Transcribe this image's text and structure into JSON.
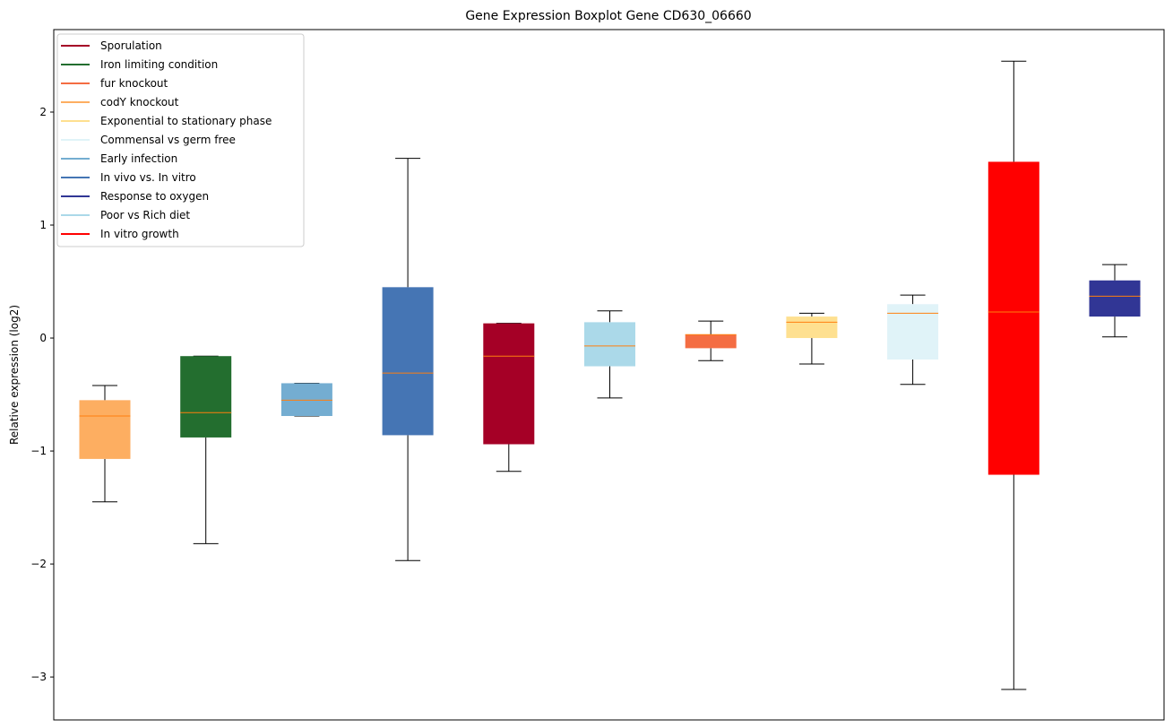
{
  "chart_data": {
    "type": "boxplot",
    "title": "Gene Expression Boxplot Gene CD630_06660",
    "xlabel": "",
    "ylabel": "Relative expression (log2)",
    "ylim": [
      -3.38,
      2.73
    ],
    "yticks": [
      2,
      1,
      0,
      -1,
      -2,
      -3
    ],
    "ytick_labels": [
      "2",
      "1",
      "0",
      "−1",
      "−2",
      "−3"
    ],
    "grid": false,
    "legend_position": "top-left",
    "legend": [
      {
        "label": "Sporulation",
        "color": "#a50026"
      },
      {
        "label": "Iron limiting condition",
        "color": "#236e2f"
      },
      {
        "label": "fur knockout",
        "color": "#f46d43"
      },
      {
        "label": "codY knockout",
        "color": "#fdae61"
      },
      {
        "label": "Exponential to stationary phase",
        "color": "#fee090"
      },
      {
        "label": "Commensal vs germ free",
        "color": "#e0f3f8"
      },
      {
        "label": "Early infection",
        "color": "#74add1"
      },
      {
        "label": "In vivo vs. In vitro",
        "color": "#4575b4"
      },
      {
        "label": "Response to oxygen",
        "color": "#313695"
      },
      {
        "label": "Poor vs Rich diet",
        "color": "#abd9e9"
      },
      {
        "label": "In vitro growth",
        "color": "#ff0000"
      }
    ],
    "median_color": "#ff7f0e",
    "boxes": [
      {
        "color": "#fdae61",
        "whisker_low": -1.45,
        "q1": -1.07,
        "median": -0.69,
        "q3": -0.55,
        "whisker_high": -0.42
      },
      {
        "color": "#236e2f",
        "whisker_low": -1.82,
        "q1": -0.88,
        "median": -0.66,
        "q3": -0.16,
        "whisker_high": -0.16
      },
      {
        "color": "#74add1",
        "whisker_low": -0.69,
        "q1": -0.69,
        "median": -0.55,
        "q3": -0.4,
        "whisker_high": -0.4
      },
      {
        "color": "#4575b4",
        "whisker_low": -1.97,
        "q1": -0.86,
        "median": -0.31,
        "q3": 0.45,
        "whisker_high": 1.59
      },
      {
        "color": "#a50026",
        "whisker_low": -1.18,
        "q1": -0.94,
        "median": -0.16,
        "q3": 0.13,
        "whisker_high": 0.13
      },
      {
        "color": "#abd9e9",
        "whisker_low": -0.53,
        "q1": -0.25,
        "median": -0.07,
        "q3": 0.14,
        "whisker_high": 0.24
      },
      {
        "color": "#f46d43",
        "whisker_low": -0.2,
        "q1": -0.09,
        "median": 0.03,
        "q3": 0.03,
        "whisker_high": 0.15
      },
      {
        "color": "#fee090",
        "whisker_low": -0.23,
        "q1": 0.0,
        "median": 0.14,
        "q3": 0.19,
        "whisker_high": 0.22
      },
      {
        "color": "#e0f3f8",
        "whisker_low": -0.41,
        "q1": -0.19,
        "median": 0.22,
        "q3": 0.3,
        "whisker_high": 0.38
      },
      {
        "color": "#ff0000",
        "whisker_low": -3.11,
        "q1": -1.21,
        "median": 0.23,
        "q3": 1.56,
        "whisker_high": 2.45
      },
      {
        "color": "#313695",
        "whisker_low": 0.01,
        "q1": 0.19,
        "median": 0.37,
        "q3": 0.51,
        "whisker_high": 0.65
      }
    ]
  }
}
